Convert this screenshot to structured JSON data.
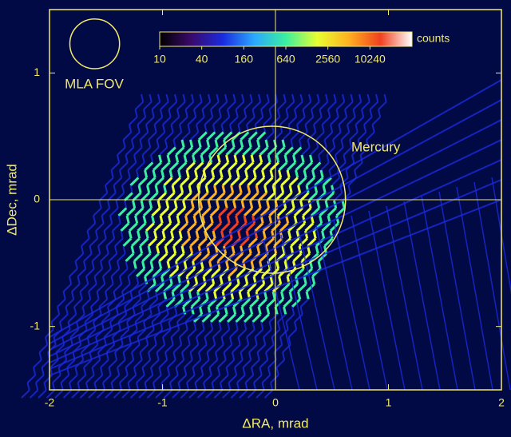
{
  "chart_data": {
    "type": "scan-map",
    "x_label": "ΔRA, mrad",
    "y_label": "ΔDec, mrad",
    "xlim": [
      -2,
      2
    ],
    "ylim": [
      -1.5,
      1.5
    ],
    "xticks": [
      -2,
      -1,
      0,
      1,
      2
    ],
    "yticks": [
      -1,
      0,
      1
    ],
    "background": "#020a45",
    "axis_color": "#f2ea6a",
    "circles": [
      {
        "label": "Mercury",
        "center": [
          -0.03,
          0.0
        ],
        "radius": 0.65
      },
      {
        "label": "MLA FOV",
        "center": [
          -1.6,
          1.23
        ],
        "radius": 0.22
      }
    ],
    "colorbar": {
      "label": "counts",
      "lim": [
        10,
        40960
      ],
      "ticks": [
        10,
        40,
        160,
        640,
        2560,
        10240
      ],
      "log": true,
      "colors": [
        "#000000",
        "#3a0a6a",
        "#1a2adf",
        "#2aa8ff",
        "#3af0a0",
        "#e8ff30",
        "#ffb020",
        "#f04020",
        "#ffffff"
      ]
    }
  }
}
